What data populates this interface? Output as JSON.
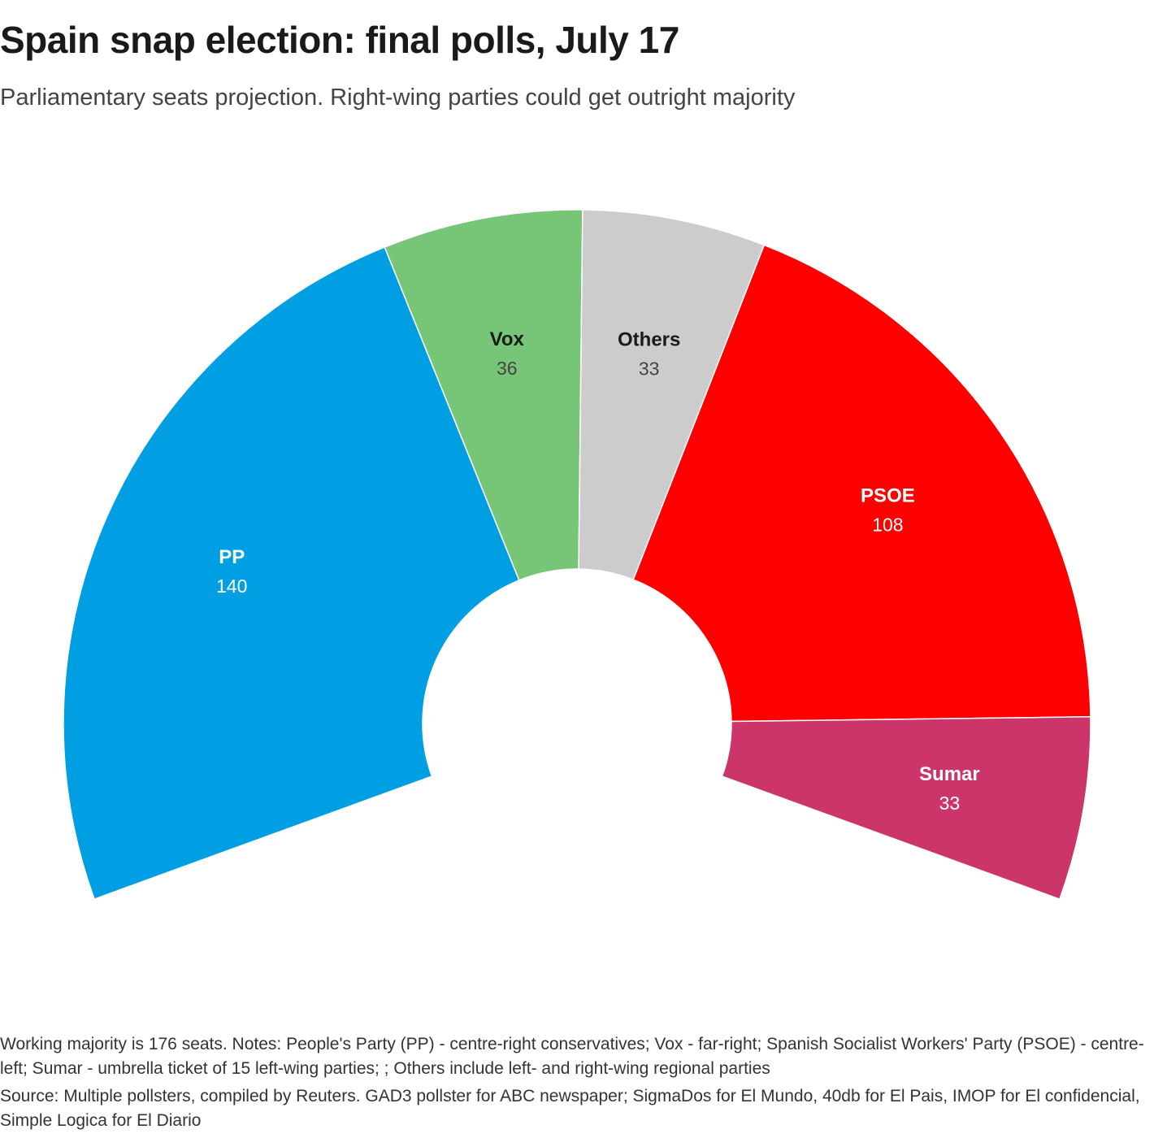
{
  "title": "Spain snap election: final polls, July 17",
  "subtitle": "Parliamentary seats projection. Right-wing parties could get outright majority",
  "chart_data": {
    "type": "pie",
    "subtype": "parliament-arc",
    "title": "Spain snap election: final polls, July 17",
    "subtitle": "Parliamentary seats projection. Right-wing parties could get outright majority",
    "unit": "seats",
    "total_seats": 350,
    "majority_threshold": 176,
    "categories": [
      "PP",
      "Vox",
      "Others",
      "PSOE",
      "Sumar"
    ],
    "values": [
      140,
      36,
      33,
      108,
      33
    ],
    "colors": [
      "#009fe3",
      "#77c576",
      "#cccccc",
      "#ff0000",
      "#cc3569"
    ],
    "label_colors": [
      {
        "name": "#ffffff",
        "value": "#ffffff"
      },
      {
        "name": "#1a1a1a",
        "value": "#444444"
      },
      {
        "name": "#1a1a1a",
        "value": "#444444"
      },
      {
        "name": "#ffffff",
        "value": "#ffffff"
      },
      {
        "name": "#ffffff",
        "value": "#ffffff"
      }
    ]
  },
  "footer": {
    "notes": "Working majority is 176 seats. Notes: People's Party (PP) - centre-right conservatives; Vox - far-right; Spanish Socialist Workers' Party (PSOE) - centre-left; Sumar - umbrella ticket of 15 left-wing parties; ; Others include left- and right-wing regional parties",
    "source": "Source: Multiple pollsters, compiled by Reuters. GAD3 pollster for ABC newspaper; SigmaDos for El Mundo, 40db for El Pais, IMOP for El confidencial, Simple Logica for El Diario"
  }
}
